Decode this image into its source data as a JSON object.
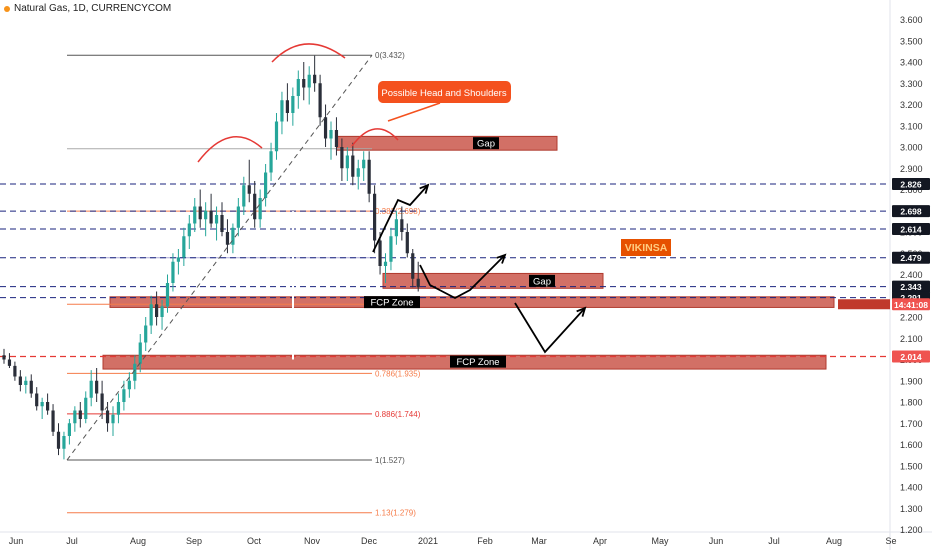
{
  "header": {
    "title": "Natural Gas, 1D, CURRENCYCOM"
  },
  "chart_data": {
    "type": "candlestick",
    "title": "Natural Gas, 1D, CURRENCYCOM",
    "ylim": [
      1.2,
      3.65
    ],
    "y_ticks": [
      "3.600",
      "3.500",
      "3.400",
      "3.300",
      "3.200",
      "3.100",
      "3.000",
      "2.900",
      "2.800",
      "2.700",
      "2.600",
      "2.500",
      "2.400",
      "2.300",
      "2.200",
      "2.100",
      "2.000",
      "1.900",
      "1.800",
      "1.700",
      "1.600",
      "1.500",
      "1.400",
      "1.300",
      "1.200"
    ],
    "x_ticks": [
      "Jun",
      "Jul",
      "Aug",
      "Sep",
      "Oct",
      "Nov",
      "Dec",
      "2021",
      "Feb",
      "Mar",
      "Apr",
      "May",
      "Jun",
      "Jul",
      "Aug",
      "Se"
    ],
    "price_labels": [
      {
        "value": 2.826,
        "text": "2.826",
        "bg": "#131722"
      },
      {
        "value": 2.698,
        "text": "2.698",
        "bg": "#131722"
      },
      {
        "value": 2.614,
        "text": "2.614",
        "bg": "#131722"
      },
      {
        "value": 2.479,
        "text": "2.479",
        "bg": "#131722"
      },
      {
        "value": 2.343,
        "text": "2.343",
        "bg": "#131722"
      },
      {
        "value": 2.291,
        "text": "2.291",
        "bg": "#131722"
      },
      {
        "value": 2.26,
        "text": "14:41:08",
        "bg": "#ef5350"
      },
      {
        "value": 2.014,
        "text": "2.014",
        "bg": "#ef5350"
      }
    ],
    "dashed_levels": [
      2.826,
      2.698,
      2.614,
      2.479,
      2.343,
      2.291
    ],
    "red_dashed_level": 2.014,
    "fib_levels": [
      {
        "value": 3.432,
        "label": "0(3.432)",
        "color": "#555555"
      },
      {
        "value": 2.992,
        "label": "",
        "color": "#aaaaaa"
      },
      {
        "value": 2.698,
        "label": "0.382(2.698)",
        "color": "#f57c4a"
      },
      {
        "value": 2.479,
        "label": "",
        "color": "#a9a9d6"
      },
      {
        "value": 2.26,
        "label": "",
        "color": "#f57c4a"
      },
      {
        "value": 1.935,
        "label": "0.786(1.935)",
        "color": "#f57c4a"
      },
      {
        "value": 1.744,
        "label": "0.886(1.744)",
        "color": "#e53935"
      },
      {
        "value": 1.527,
        "label": "1(1.527)",
        "color": "#555555"
      },
      {
        "value": 1.279,
        "label": "1.13(1.279)",
        "color": "#f57c4a"
      }
    ],
    "zones": [
      {
        "label": "Gap",
        "y_top": 3.05,
        "y_bottom": 2.985
      },
      {
        "label": "Gap",
        "y_top": 2.405,
        "y_bottom": 2.335
      },
      {
        "label": "FCP Zone",
        "y_top": 2.295,
        "y_bottom": 2.245
      },
      {
        "label": "FCP Zone",
        "y_top": 2.02,
        "y_bottom": 1.955
      }
    ],
    "annotations": {
      "callout": "Possible Head and Shoulders",
      "watermark": "VIKINSA"
    },
    "candles": [
      [
        2.02,
        2.05,
        1.98,
        2.0
      ],
      [
        2.0,
        2.03,
        1.96,
        1.97
      ],
      [
        1.97,
        1.99,
        1.9,
        1.92
      ],
      [
        1.92,
        1.95,
        1.85,
        1.88
      ],
      [
        1.88,
        1.92,
        1.84,
        1.9
      ],
      [
        1.9,
        1.93,
        1.82,
        1.84
      ],
      [
        1.84,
        1.87,
        1.76,
        1.78
      ],
      [
        1.78,
        1.82,
        1.72,
        1.8
      ],
      [
        1.8,
        1.84,
        1.74,
        1.76
      ],
      [
        1.76,
        1.79,
        1.64,
        1.66
      ],
      [
        1.66,
        1.7,
        1.55,
        1.58
      ],
      [
        1.58,
        1.66,
        1.53,
        1.64
      ],
      [
        1.64,
        1.72,
        1.6,
        1.7
      ],
      [
        1.7,
        1.78,
        1.66,
        1.76
      ],
      [
        1.76,
        1.8,
        1.68,
        1.72
      ],
      [
        1.72,
        1.85,
        1.7,
        1.82
      ],
      [
        1.82,
        1.95,
        1.78,
        1.9
      ],
      [
        1.9,
        1.96,
        1.8,
        1.84
      ],
      [
        1.84,
        1.9,
        1.72,
        1.76
      ],
      [
        1.76,
        1.8,
        1.66,
        1.7
      ],
      [
        1.7,
        1.78,
        1.64,
        1.74
      ],
      [
        1.74,
        1.84,
        1.7,
        1.8
      ],
      [
        1.8,
        1.9,
        1.76,
        1.86
      ],
      [
        1.86,
        1.94,
        1.82,
        1.9
      ],
      [
        1.9,
        2.02,
        1.86,
        1.98
      ],
      [
        1.98,
        2.12,
        1.94,
        2.08
      ],
      [
        2.08,
        2.2,
        2.04,
        2.16
      ],
      [
        2.16,
        2.3,
        2.12,
        2.26
      ],
      [
        2.26,
        2.32,
        2.16,
        2.2
      ],
      [
        2.2,
        2.28,
        2.14,
        2.25
      ],
      [
        2.25,
        2.4,
        2.22,
        2.36
      ],
      [
        2.36,
        2.5,
        2.32,
        2.46
      ],
      [
        2.46,
        2.52,
        2.4,
        2.48
      ],
      [
        2.48,
        2.62,
        2.44,
        2.58
      ],
      [
        2.58,
        2.68,
        2.52,
        2.64
      ],
      [
        2.64,
        2.76,
        2.6,
        2.72
      ],
      [
        2.72,
        2.8,
        2.62,
        2.66
      ],
      [
        2.66,
        2.74,
        2.58,
        2.7
      ],
      [
        2.7,
        2.78,
        2.62,
        2.64
      ],
      [
        2.64,
        2.72,
        2.56,
        2.68
      ],
      [
        2.68,
        2.74,
        2.58,
        2.6
      ],
      [
        2.6,
        2.66,
        2.5,
        2.54
      ],
      [
        2.54,
        2.64,
        2.5,
        2.62
      ],
      [
        2.62,
        2.76,
        2.58,
        2.72
      ],
      [
        2.72,
        2.86,
        2.68,
        2.82
      ],
      [
        2.82,
        2.94,
        2.74,
        2.78
      ],
      [
        2.78,
        2.84,
        2.62,
        2.66
      ],
      [
        2.66,
        2.8,
        2.62,
        2.76
      ],
      [
        2.76,
        2.92,
        2.72,
        2.88
      ],
      [
        2.88,
        3.02,
        2.84,
        2.98
      ],
      [
        2.98,
        3.16,
        2.94,
        3.12
      ],
      [
        3.12,
        3.26,
        3.06,
        3.22
      ],
      [
        3.22,
        3.3,
        3.12,
        3.16
      ],
      [
        3.16,
        3.28,
        3.1,
        3.24
      ],
      [
        3.24,
        3.36,
        3.18,
        3.32
      ],
      [
        3.32,
        3.4,
        3.22,
        3.28
      ],
      [
        3.28,
        3.38,
        3.2,
        3.34
      ],
      [
        3.34,
        3.43,
        3.26,
        3.3
      ],
      [
        3.3,
        3.34,
        3.1,
        3.14
      ],
      [
        3.14,
        3.2,
        3.0,
        3.04
      ],
      [
        3.04,
        3.12,
        2.94,
        3.08
      ],
      [
        3.08,
        3.14,
        2.96,
        3.0
      ],
      [
        3.0,
        3.04,
        2.84,
        2.9
      ],
      [
        2.9,
        3.0,
        2.84,
        2.96
      ],
      [
        2.96,
        3.02,
        2.82,
        2.86
      ],
      [
        2.86,
        2.94,
        2.8,
        2.9
      ],
      [
        2.9,
        2.98,
        2.84,
        2.94
      ],
      [
        2.94,
        2.98,
        2.74,
        2.78
      ],
      [
        2.78,
        2.82,
        2.5,
        2.56
      ],
      [
        2.56,
        2.6,
        2.4,
        2.44
      ],
      [
        2.44,
        2.5,
        2.36,
        2.46
      ],
      [
        2.46,
        2.62,
        2.42,
        2.58
      ],
      [
        2.58,
        2.7,
        2.54,
        2.66
      ],
      [
        2.66,
        2.72,
        2.56,
        2.6
      ],
      [
        2.6,
        2.64,
        2.48,
        2.5
      ],
      [
        2.5,
        2.52,
        2.34,
        2.38
      ],
      [
        2.38,
        2.46,
        2.32,
        2.34
      ]
    ]
  }
}
